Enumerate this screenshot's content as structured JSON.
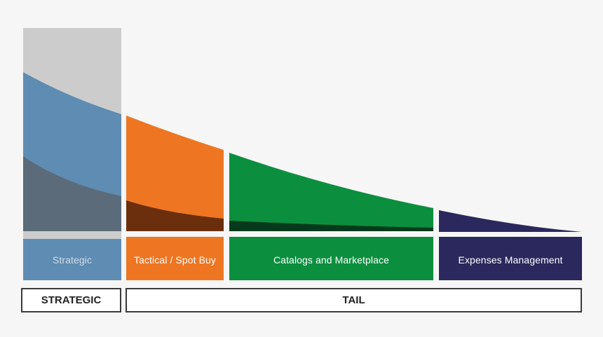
{
  "segments": [
    {
      "id": "strategic",
      "label": "Strategic",
      "color": "#5f8cb2",
      "top_color": "#cccccc",
      "dark_color": "#5b6b7a"
    },
    {
      "id": "tactical",
      "label": "Tactical / Spot Buy",
      "color": "#ee7623",
      "dark_color": "#6b2f0e"
    },
    {
      "id": "catalogs",
      "label": "Catalogs and Marketplace",
      "color": "#0b8f3e",
      "dark_color": "#073a1c"
    },
    {
      "id": "expenses",
      "label": "Expenses Management",
      "color": "#2a285c"
    }
  ],
  "groups": {
    "strategic": "STRATEGIC",
    "tail": "TAIL"
  }
}
